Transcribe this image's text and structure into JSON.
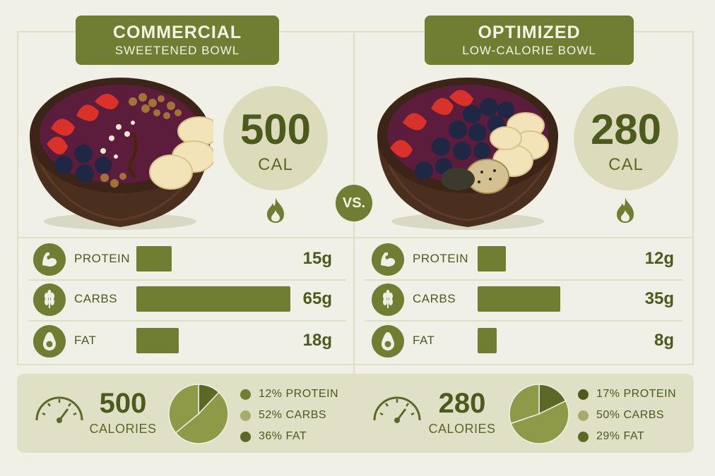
{
  "left": {
    "title": "COMMERCIAL",
    "subtitle": "SWEETENED BOWL",
    "calories": "500",
    "cal_unit": "CAL",
    "nutrients": [
      {
        "label": "PROTEIN",
        "value": "15g",
        "grams": 15,
        "icon": "muscle-icon"
      },
      {
        "label": "CARBS",
        "value": "65g",
        "grams": 65,
        "icon": "wheat-icon"
      },
      {
        "label": "FAT",
        "value": "18g",
        "grams": 18,
        "icon": "avocado-icon"
      }
    ],
    "summary": {
      "calories": "500",
      "unit": "CALORIES",
      "breakdown": [
        {
          "label": "12% PROTEIN",
          "percent": 12,
          "color": "#6f7e32"
        },
        {
          "label": "52% CARBS",
          "percent": 52,
          "color": "#a4ad6a"
        },
        {
          "label": "36% FAT",
          "percent": 36,
          "color": "#5b6826"
        }
      ]
    }
  },
  "right": {
    "title": "OPTIMIZED",
    "subtitle": "LOW-CALORIE BOWL",
    "calories": "280",
    "cal_unit": "CAL",
    "nutrients": [
      {
        "label": "PROTEIN",
        "value": "12g",
        "grams": 12,
        "icon": "muscle-icon"
      },
      {
        "label": "CARBS",
        "value": "35g",
        "grams": 35,
        "icon": "wheat-icon"
      },
      {
        "label": "FAT",
        "value": "8g",
        "grams": 8,
        "icon": "avocado-icon"
      }
    ],
    "summary": {
      "calories": "280",
      "unit": "CALORIES",
      "breakdown": [
        {
          "label": "17% PROTEIN",
          "percent": 17,
          "color": "#4d5a1e"
        },
        {
          "label": "50% CARBS",
          "percent": 50,
          "color": "#a4ad6a"
        },
        {
          "label": "29% FAT",
          "percent": 29,
          "color": "#5b6826"
        }
      ]
    }
  },
  "vs_label": "VS.",
  "colors": {
    "accent": "#6f7e32",
    "background": "#f1f0e6",
    "panel": "#dfe0c6",
    "text": "#4d5a1e"
  }
}
